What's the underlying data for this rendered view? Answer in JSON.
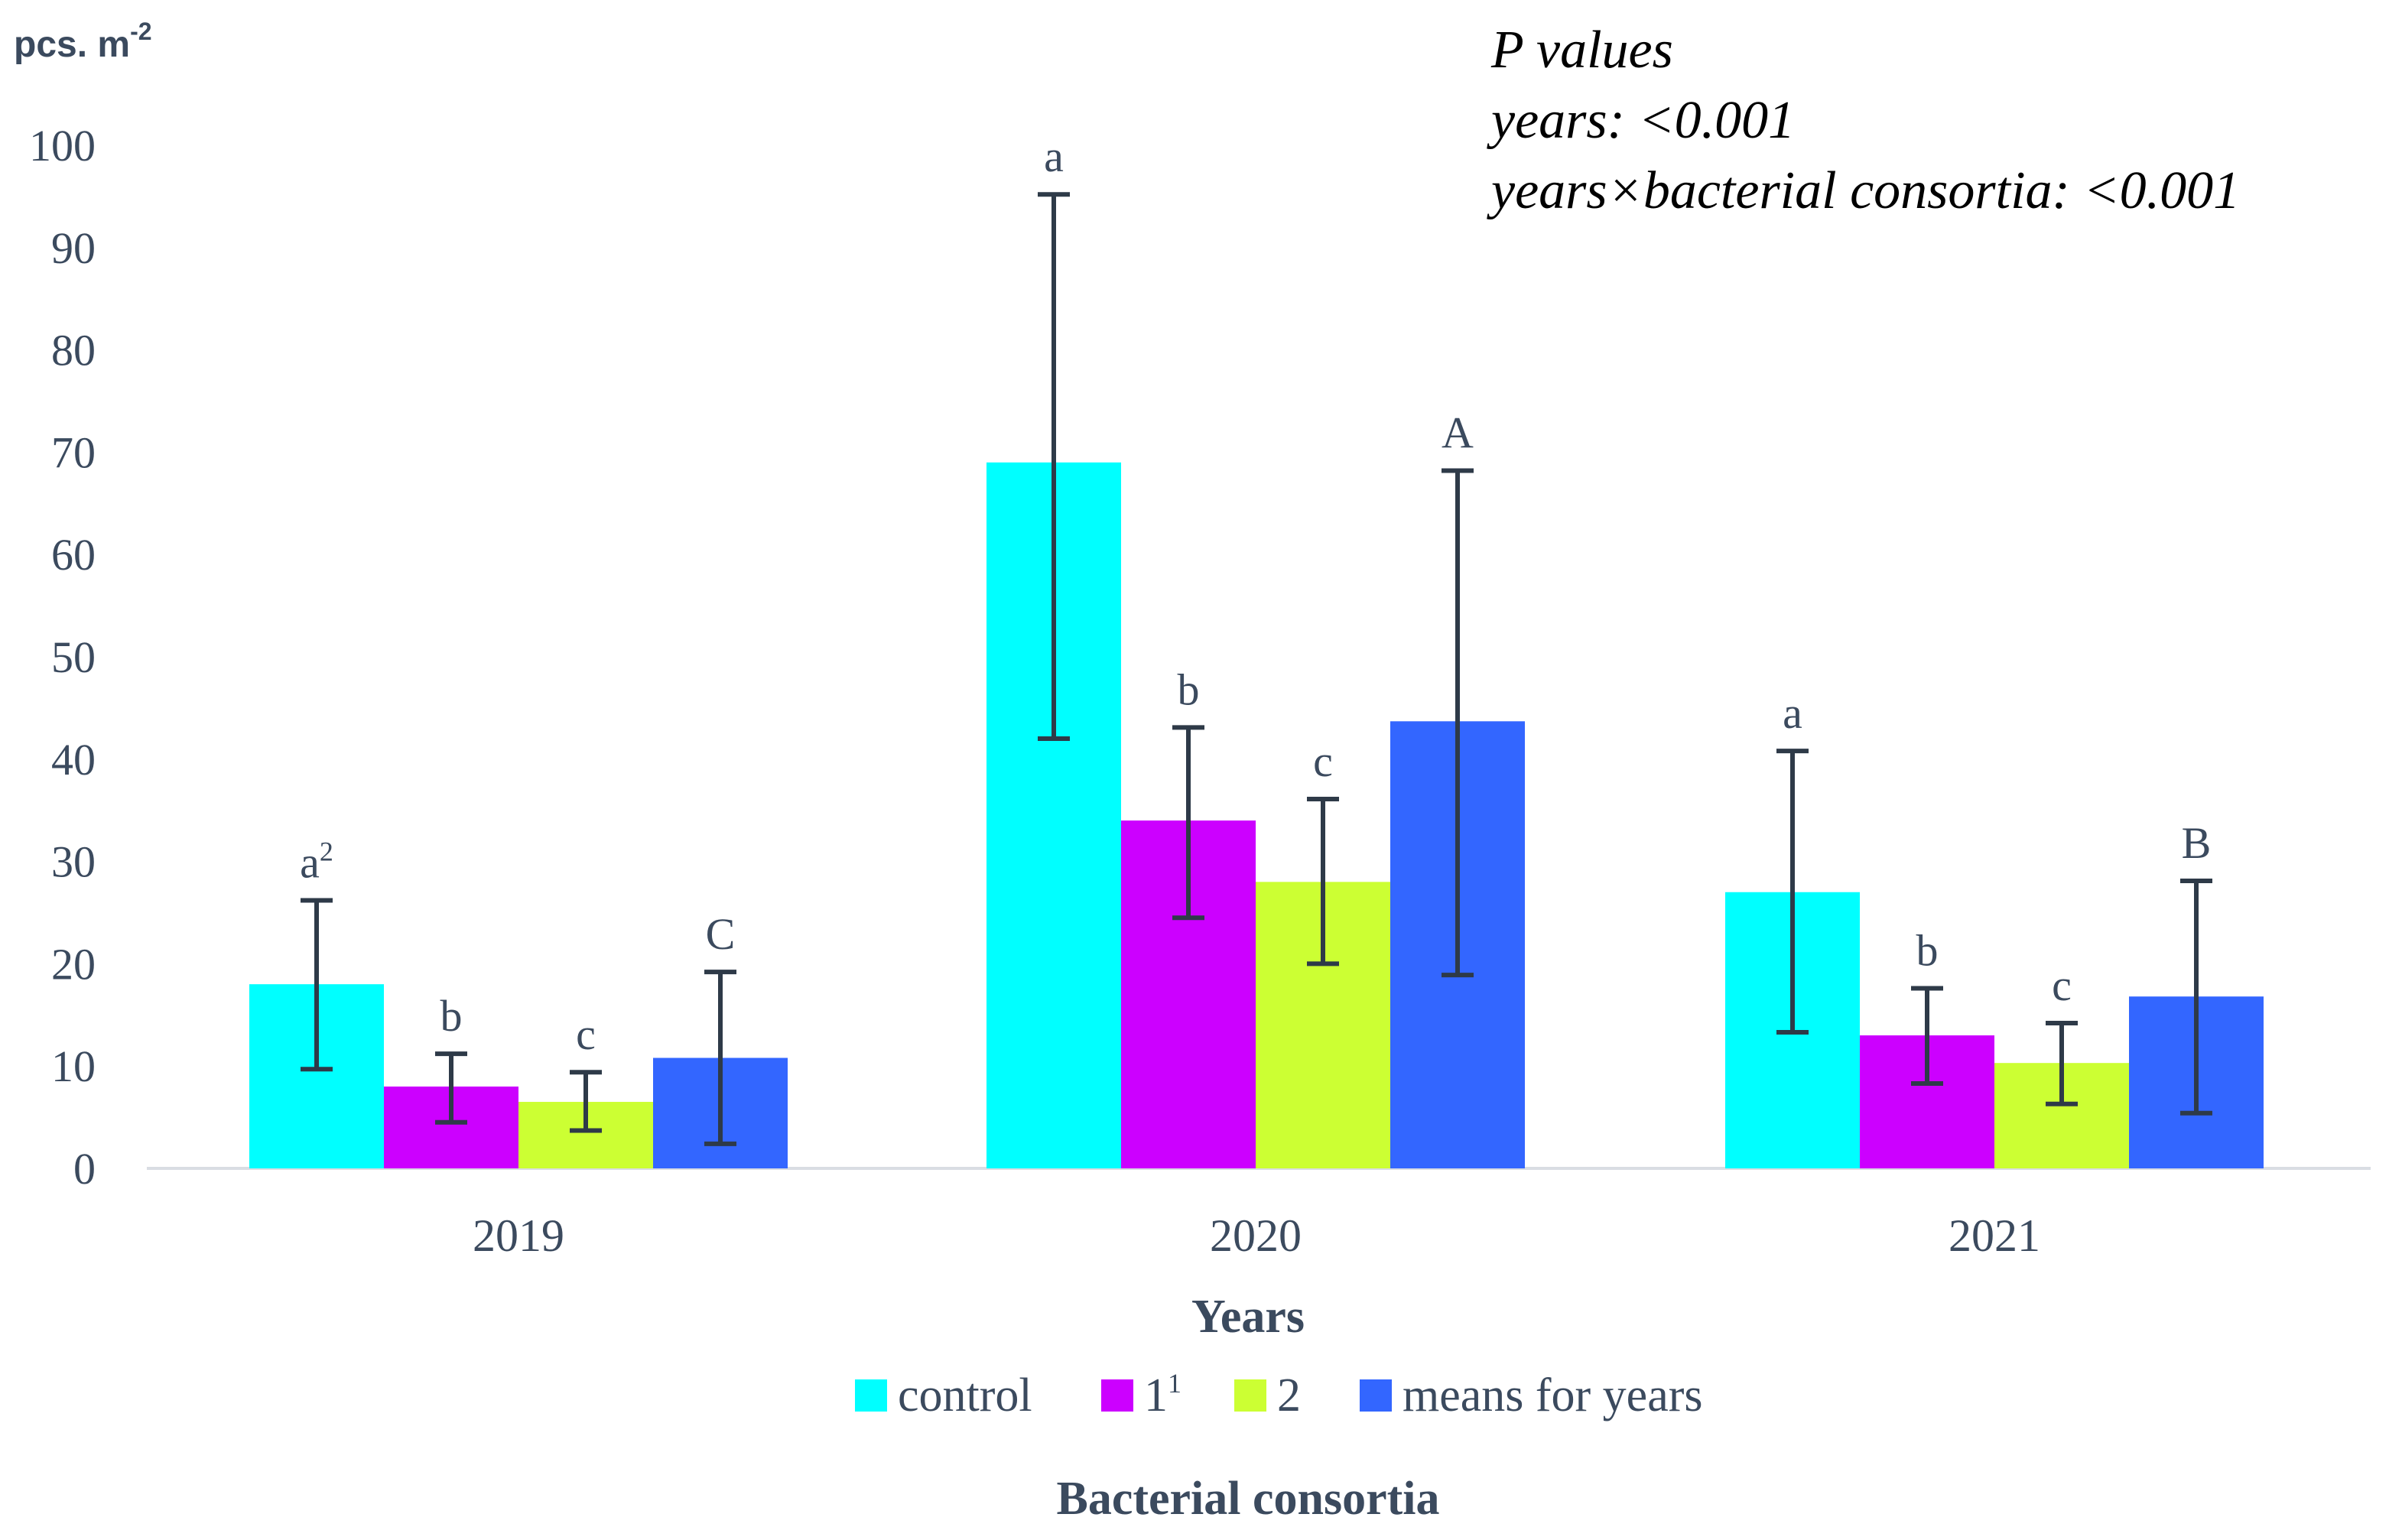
{
  "chart_data": {
    "type": "bar",
    "ylabel": "pcs. m",
    "ylabel_sup": "-2",
    "xlabel": "Years",
    "legend_title": "Bacterial consortia",
    "categories": [
      "2019",
      "2020",
      "2021"
    ],
    "ylim": [
      0,
      100
    ],
    "yticks": [
      0,
      10,
      20,
      30,
      40,
      50,
      60,
      70,
      80,
      90,
      100
    ],
    "series": [
      {
        "name": "control",
        "name_sup": "",
        "color": "#00ffff",
        "values": [
          18,
          69,
          27
        ],
        "err_low": [
          9.7,
          42,
          13.3
        ],
        "err_high": [
          26.2,
          95.2,
          40.8
        ],
        "labels": [
          "a",
          "a",
          "a"
        ],
        "label_sups": [
          "2",
          "",
          ""
        ]
      },
      {
        "name": "1",
        "name_sup": "1",
        "color": "#cc00ff",
        "values": [
          8,
          34,
          13
        ],
        "err_low": [
          4.5,
          24.5,
          8.3
        ],
        "err_high": [
          11.2,
          43.1,
          17.6
        ],
        "labels": [
          "b",
          "b",
          "b"
        ],
        "label_sups": [
          "",
          "",
          ""
        ]
      },
      {
        "name": "2",
        "name_sup": "",
        "color": "#ccff33",
        "values": [
          6.5,
          28,
          10.3
        ],
        "err_low": [
          3.7,
          20,
          6.3
        ],
        "err_high": [
          9.4,
          36.1,
          14.2
        ],
        "labels": [
          "c",
          "c",
          "c"
        ],
        "label_sups": [
          "",
          "",
          ""
        ]
      },
      {
        "name": "means for years",
        "name_sup": "",
        "color": "#3366ff",
        "values": [
          10.8,
          43.7,
          16.8
        ],
        "err_low": [
          2.4,
          18.9,
          5.4
        ],
        "err_high": [
          19.2,
          68.2,
          28.1
        ],
        "labels": [
          "C",
          "A",
          "B"
        ],
        "label_sups": [
          "",
          "",
          ""
        ]
      }
    ],
    "annotation": {
      "line1": "P values",
      "line2": "years: <0.001",
      "line3": "years×bacterial consortia: <0.001"
    }
  }
}
